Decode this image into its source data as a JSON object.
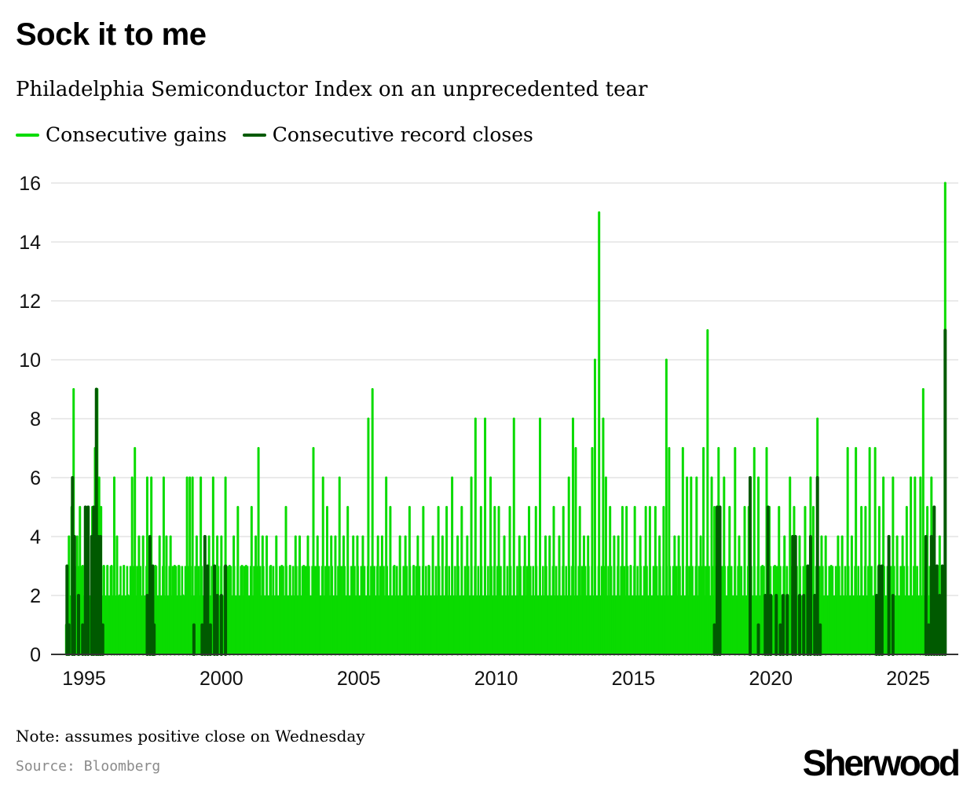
{
  "title": "Sock it to me",
  "subtitle": "Philadelphia Semiconductor Index on an unprecedented tear",
  "legend": [
    {
      "label": "Consecutive gains",
      "color": "#0adb00"
    },
    {
      "label": "Consecutive record closes",
      "color": "#005a00"
    }
  ],
  "note": "Note: assumes positive close on Wednesday",
  "source": "Source: Bloomberg",
  "brand": "Sherwood",
  "colors": {
    "gains": "#0adb00",
    "records": "#005a00",
    "grid": "#e3e3e3",
    "axis": "#333333"
  },
  "chart_data": {
    "type": "bar",
    "title": "Sock it to me",
    "subtitle": "Philadelphia Semiconductor Index on an unprecedented tear",
    "xlabel": "",
    "ylabel": "",
    "xlim": [
      1994.0,
      2026.9
    ],
    "ylim": [
      0,
      16
    ],
    "yticks": [
      0,
      2,
      4,
      6,
      8,
      10,
      12,
      14,
      16
    ],
    "xticks": [
      1995,
      2000,
      2005,
      2010,
      2015,
      2020,
      2025
    ],
    "grid": true,
    "legend_position": "top-left",
    "series": [
      {
        "name": "Consecutive gains",
        "color": "#0adb00",
        "points": [
          [
            1994.35,
            1
          ],
          [
            1994.45,
            4
          ],
          [
            1994.55,
            5
          ],
          [
            1994.62,
            9
          ],
          [
            1994.75,
            4
          ],
          [
            1994.85,
            5
          ],
          [
            1994.95,
            3
          ],
          [
            1995.05,
            5
          ],
          [
            1995.15,
            4
          ],
          [
            1995.3,
            5
          ],
          [
            1995.4,
            7
          ],
          [
            1995.48,
            9
          ],
          [
            1995.55,
            6
          ],
          [
            1995.62,
            5
          ],
          [
            1995.72,
            3
          ],
          [
            1995.85,
            3
          ],
          [
            1996.0,
            3
          ],
          [
            1996.1,
            6
          ],
          [
            1996.2,
            4
          ],
          [
            1996.3,
            2
          ],
          [
            1996.45,
            3
          ],
          [
            1996.6,
            2
          ],
          [
            1996.75,
            6
          ],
          [
            1996.85,
            7
          ],
          [
            1997.0,
            4
          ],
          [
            1997.15,
            4
          ],
          [
            1997.3,
            6
          ],
          [
            1997.45,
            6
          ],
          [
            1997.6,
            3
          ],
          [
            1997.75,
            4
          ],
          [
            1997.9,
            6
          ],
          [
            1998.0,
            4
          ],
          [
            1998.15,
            4
          ],
          [
            1998.3,
            3
          ],
          [
            1998.45,
            3
          ],
          [
            1998.6,
            2
          ],
          [
            1998.75,
            6
          ],
          [
            1998.85,
            6
          ],
          [
            1998.95,
            6
          ],
          [
            1999.1,
            4
          ],
          [
            1999.25,
            6
          ],
          [
            1999.4,
            4
          ],
          [
            1999.55,
            4
          ],
          [
            1999.7,
            6
          ],
          [
            1999.85,
            4
          ],
          [
            2000.0,
            4
          ],
          [
            2000.15,
            6
          ],
          [
            2000.3,
            3
          ],
          [
            2000.45,
            4
          ],
          [
            2000.6,
            5
          ],
          [
            2000.75,
            3
          ],
          [
            2000.9,
            3
          ],
          [
            2001.1,
            5
          ],
          [
            2001.25,
            4
          ],
          [
            2001.35,
            7
          ],
          [
            2001.5,
            4
          ],
          [
            2001.65,
            4
          ],
          [
            2001.8,
            3
          ],
          [
            2002.0,
            4
          ],
          [
            2002.2,
            3
          ],
          [
            2002.35,
            5
          ],
          [
            2002.5,
            3
          ],
          [
            2002.7,
            4
          ],
          [
            2002.85,
            4
          ],
          [
            2003.0,
            3
          ],
          [
            2003.15,
            4
          ],
          [
            2003.35,
            7
          ],
          [
            2003.5,
            4
          ],
          [
            2003.7,
            6
          ],
          [
            2003.85,
            5
          ],
          [
            2004.0,
            4
          ],
          [
            2004.15,
            4
          ],
          [
            2004.3,
            6
          ],
          [
            2004.45,
            4
          ],
          [
            2004.6,
            5
          ],
          [
            2004.8,
            4
          ],
          [
            2004.95,
            4
          ],
          [
            2005.15,
            4
          ],
          [
            2005.35,
            8
          ],
          [
            2005.5,
            9
          ],
          [
            2005.7,
            4
          ],
          [
            2005.85,
            4
          ],
          [
            2006.0,
            6
          ],
          [
            2006.15,
            5
          ],
          [
            2006.3,
            3
          ],
          [
            2006.5,
            4
          ],
          [
            2006.7,
            4
          ],
          [
            2006.85,
            5
          ],
          [
            2007.0,
            3
          ],
          [
            2007.15,
            4
          ],
          [
            2007.35,
            5
          ],
          [
            2007.55,
            3
          ],
          [
            2007.7,
            4
          ],
          [
            2007.9,
            5
          ],
          [
            2008.05,
            4
          ],
          [
            2008.2,
            5
          ],
          [
            2008.4,
            6
          ],
          [
            2008.6,
            4
          ],
          [
            2008.75,
            5
          ],
          [
            2008.95,
            4
          ],
          [
            2009.1,
            6
          ],
          [
            2009.25,
            8
          ],
          [
            2009.45,
            5
          ],
          [
            2009.6,
            8
          ],
          [
            2009.8,
            6
          ],
          [
            2009.95,
            5
          ],
          [
            2010.1,
            5
          ],
          [
            2010.3,
            4
          ],
          [
            2010.5,
            5
          ],
          [
            2010.65,
            8
          ],
          [
            2010.85,
            4
          ],
          [
            2011.05,
            4
          ],
          [
            2011.2,
            5
          ],
          [
            2011.45,
            5
          ],
          [
            2011.6,
            8
          ],
          [
            2011.8,
            4
          ],
          [
            2011.95,
            4
          ],
          [
            2012.1,
            5
          ],
          [
            2012.3,
            4
          ],
          [
            2012.45,
            5
          ],
          [
            2012.65,
            6
          ],
          [
            2012.8,
            8
          ],
          [
            2012.9,
            7
          ],
          [
            2013.05,
            5
          ],
          [
            2013.2,
            4
          ],
          [
            2013.35,
            4
          ],
          [
            2013.5,
            7
          ],
          [
            2013.6,
            10
          ],
          [
            2013.75,
            15
          ],
          [
            2013.9,
            8
          ],
          [
            2014.0,
            6
          ],
          [
            2014.15,
            5
          ],
          [
            2014.3,
            4
          ],
          [
            2014.45,
            4
          ],
          [
            2014.6,
            5
          ],
          [
            2014.75,
            5
          ],
          [
            2014.9,
            3
          ],
          [
            2015.05,
            5
          ],
          [
            2015.25,
            4
          ],
          [
            2015.45,
            5
          ],
          [
            2015.6,
            5
          ],
          [
            2015.8,
            5
          ],
          [
            2015.95,
            4
          ],
          [
            2016.1,
            5
          ],
          [
            2016.2,
            10
          ],
          [
            2016.3,
            7
          ],
          [
            2016.5,
            4
          ],
          [
            2016.65,
            4
          ],
          [
            2016.8,
            7
          ],
          [
            2016.95,
            6
          ],
          [
            2017.1,
            6
          ],
          [
            2017.3,
            6
          ],
          [
            2017.45,
            4
          ],
          [
            2017.55,
            7
          ],
          [
            2017.7,
            11
          ],
          [
            2017.85,
            6
          ],
          [
            2017.95,
            5
          ],
          [
            2018.1,
            7
          ],
          [
            2018.3,
            6
          ],
          [
            2018.5,
            5
          ],
          [
            2018.7,
            7
          ],
          [
            2018.85,
            4
          ],
          [
            2019.05,
            5
          ],
          [
            2019.2,
            5
          ],
          [
            2019.4,
            7
          ],
          [
            2019.55,
            6
          ],
          [
            2019.7,
            3
          ],
          [
            2019.85,
            7
          ],
          [
            2019.95,
            5
          ],
          [
            2020.15,
            3
          ],
          [
            2020.3,
            5
          ],
          [
            2020.5,
            4
          ],
          [
            2020.7,
            6
          ],
          [
            2020.85,
            5
          ],
          [
            2021.05,
            4
          ],
          [
            2021.25,
            5
          ],
          [
            2021.45,
            6
          ],
          [
            2021.55,
            5
          ],
          [
            2021.7,
            8
          ],
          [
            2021.85,
            4
          ],
          [
            2022.0,
            4
          ],
          [
            2022.2,
            3
          ],
          [
            2022.45,
            4
          ],
          [
            2022.6,
            4
          ],
          [
            2022.8,
            7
          ],
          [
            2022.95,
            4
          ],
          [
            2023.1,
            7
          ],
          [
            2023.3,
            5
          ],
          [
            2023.45,
            5
          ],
          [
            2023.6,
            7
          ],
          [
            2023.8,
            7
          ],
          [
            2023.95,
            5
          ],
          [
            2024.1,
            6
          ],
          [
            2024.3,
            3
          ],
          [
            2024.45,
            6
          ],
          [
            2024.6,
            4
          ],
          [
            2024.8,
            4
          ],
          [
            2024.95,
            5
          ],
          [
            2025.1,
            6
          ],
          [
            2025.25,
            6
          ],
          [
            2025.45,
            6
          ],
          [
            2025.55,
            9
          ],
          [
            2025.7,
            5
          ],
          [
            2025.85,
            6
          ],
          [
            2025.95,
            5
          ],
          [
            2026.15,
            4
          ],
          [
            2026.35,
            16
          ]
        ]
      },
      {
        "name": "Consecutive record closes",
        "color": "#005a00",
        "points": [
          [
            1994.38,
            3
          ],
          [
            1994.45,
            1
          ],
          [
            1994.58,
            6
          ],
          [
            1994.65,
            4
          ],
          [
            1994.8,
            2
          ],
          [
            1994.95,
            1
          ],
          [
            1995.05,
            5
          ],
          [
            1995.15,
            5
          ],
          [
            1995.28,
            4
          ],
          [
            1995.35,
            5
          ],
          [
            1995.45,
            9
          ],
          [
            1995.52,
            4
          ],
          [
            1995.6,
            4
          ],
          [
            1995.68,
            1
          ],
          [
            1997.3,
            2
          ],
          [
            1997.4,
            4
          ],
          [
            1997.5,
            3
          ],
          [
            1997.55,
            1
          ],
          [
            1999.0,
            1
          ],
          [
            1999.3,
            1
          ],
          [
            1999.4,
            4
          ],
          [
            1999.5,
            3
          ],
          [
            1999.6,
            1
          ],
          [
            1999.75,
            3
          ],
          [
            1999.85,
            2
          ],
          [
            2000.0,
            2
          ],
          [
            2000.15,
            3
          ],
          [
            2017.95,
            1
          ],
          [
            2018.05,
            5
          ],
          [
            2018.15,
            5
          ],
          [
            2019.25,
            6
          ],
          [
            2019.55,
            1
          ],
          [
            2019.8,
            2
          ],
          [
            2019.9,
            5
          ],
          [
            2020.0,
            2
          ],
          [
            2020.2,
            2
          ],
          [
            2020.35,
            1
          ],
          [
            2020.45,
            2
          ],
          [
            2020.6,
            2
          ],
          [
            2020.8,
            4
          ],
          [
            2020.9,
            4
          ],
          [
            2021.05,
            2
          ],
          [
            2021.2,
            2
          ],
          [
            2021.35,
            3
          ],
          [
            2021.45,
            4
          ],
          [
            2021.6,
            2
          ],
          [
            2021.7,
            6
          ],
          [
            2021.8,
            1
          ],
          [
            2023.85,
            2
          ],
          [
            2023.95,
            3
          ],
          [
            2024.05,
            3
          ],
          [
            2024.3,
            4
          ],
          [
            2024.45,
            2
          ],
          [
            2025.65,
            4
          ],
          [
            2025.75,
            1
          ],
          [
            2025.85,
            4
          ],
          [
            2025.95,
            5
          ],
          [
            2026.05,
            3
          ],
          [
            2026.15,
            2
          ],
          [
            2026.25,
            3
          ],
          [
            2026.35,
            11
          ]
        ]
      }
    ]
  }
}
